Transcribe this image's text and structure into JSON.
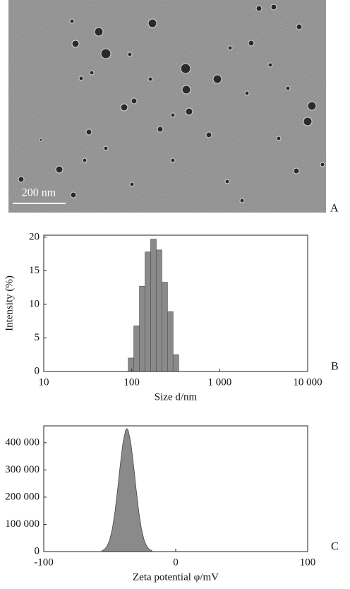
{
  "panel_a": {
    "scale_bar": "200 nm",
    "label": "A"
  },
  "chart_data": [
    {
      "type": "histogram",
      "panel_label": "B",
      "xlabel": "Size d/nm",
      "ylabel": "Intensity (%)",
      "xscale": "log",
      "xlim": [
        10,
        10000
      ],
      "xticks": [
        10,
        100,
        {
          "value": 1000,
          "label": "1 000"
        },
        {
          "value": 10000,
          "label": "10 000"
        }
      ],
      "ylim": [
        0,
        20.3
      ],
      "yticks": [
        0,
        5,
        10,
        15,
        20
      ],
      "bins": [
        91.3,
        105.7,
        122.4,
        141.8,
        164.2,
        190.1,
        220.2,
        255.0,
        295.3,
        342.0
      ],
      "values": [
        2,
        6.8,
        12.7,
        17.8,
        19.7,
        18.1,
        13.3,
        8.9,
        2.5
      ],
      "color": "#8a8a8a"
    },
    {
      "type": "area",
      "panel_label": "C",
      "xlabel": "Zeta potential φ/mV",
      "xlim": [
        -100,
        100
      ],
      "xticks": [
        -100,
        0,
        100
      ],
      "ylim": [
        0,
        462000
      ],
      "yticks": [
        0,
        {
          "value": 100000,
          "label": "100 000"
        },
        {
          "value": 200000,
          "label": "200 000"
        },
        {
          "value": 300000,
          "label": "300 000"
        },
        {
          "value": 400000,
          "label": "400 000"
        }
      ],
      "x": [
        -56,
        -54,
        -52,
        -50,
        -48,
        -46,
        -44,
        -42,
        -40,
        -38,
        -37,
        -36,
        -34,
        -32,
        -30,
        -28,
        -26,
        -24,
        -22,
        -20,
        -18
      ],
      "values": [
        3000,
        8200,
        19900,
        43200,
        84200,
        146800,
        228800,
        319500,
        398900,
        445800,
        452000,
        445800,
        398900,
        319500,
        228800,
        146800,
        84200,
        43200,
        19900,
        8200,
        3000
      ],
      "color": "#8a8a8a"
    }
  ]
}
